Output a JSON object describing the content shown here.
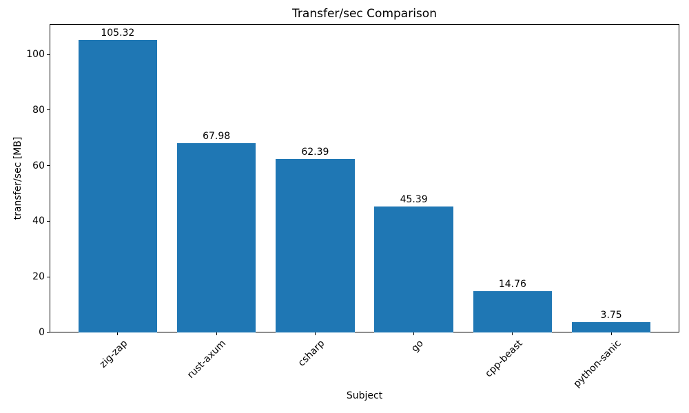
{
  "chart_data": {
    "type": "bar",
    "title": "Transfer/sec Comparison",
    "xlabel": "Subject",
    "ylabel": "transfer/sec [MB]",
    "categories": [
      "zig-zap",
      "rust-axum",
      "csharp",
      "go",
      "cpp-beast",
      "python-sanic"
    ],
    "values": [
      105.32,
      67.98,
      62.39,
      45.39,
      14.76,
      3.75
    ],
    "bar_labels": [
      "105.32",
      "67.98",
      "62.39",
      "45.39",
      "14.76",
      "3.75"
    ],
    "bar_color": "#1f77b4",
    "yticks": [
      0,
      20,
      40,
      60,
      80,
      100
    ],
    "ylim": [
      0,
      110.9
    ],
    "x_tick_rotation_deg": 45,
    "grid": false,
    "legend_position": "none"
  }
}
